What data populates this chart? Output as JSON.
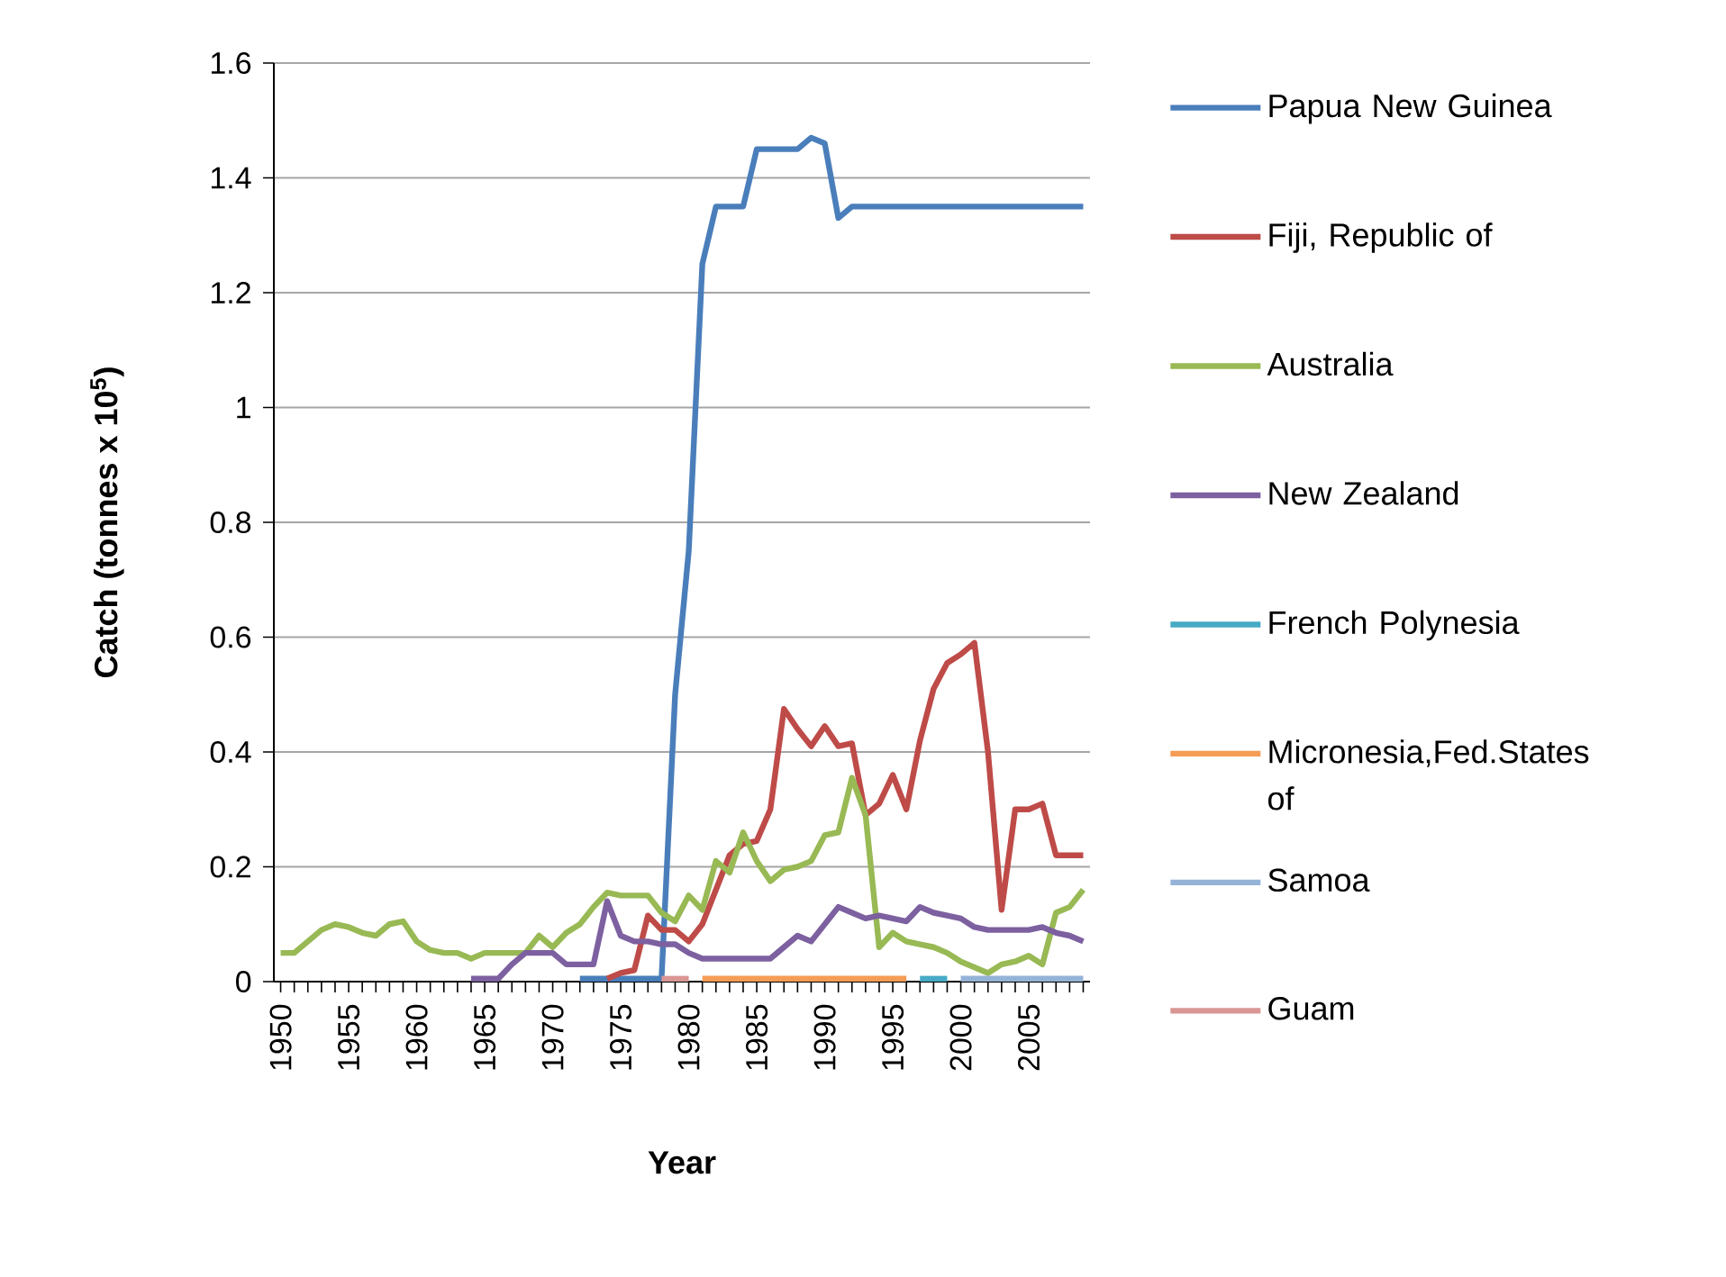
{
  "chart_data": {
    "type": "line",
    "xlabel": "Year",
    "ylabel": "Catch (tonnes x 10$^{5}$)",
    "categories": [
      "1950",
      null,
      null,
      null,
      null,
      "1955",
      null,
      null,
      null,
      null,
      "1960",
      null,
      null,
      null,
      null,
      "1965",
      null,
      null,
      null,
      null,
      "1970",
      null,
      null,
      null,
      null,
      "1975",
      null,
      null,
      null,
      null,
      "1980",
      null,
      null,
      null,
      null,
      "1985",
      null,
      null,
      null,
      null,
      "1990",
      null,
      null,
      null,
      null,
      "1995",
      null,
      null,
      null,
      null,
      "2000",
      null,
      null,
      null,
      null,
      "2005",
      null,
      null,
      null,
      null
    ],
    "ylim": [
      0,
      1.6
    ],
    "yticks": [
      0,
      0.2,
      0.4,
      0.6,
      0.8,
      1,
      1.2,
      1.4,
      1.6
    ],
    "grid": "y",
    "legend": "right",
    "marker": "none",
    "line_style": "solid",
    "series": [
      {
        "name": "Papua New Guinea",
        "color": "#4a7ebb",
        "values": [
          null,
          null,
          null,
          null,
          null,
          null,
          null,
          null,
          null,
          null,
          null,
          null,
          null,
          null,
          null,
          null,
          null,
          null,
          null,
          null,
          null,
          null,
          0.005,
          0.005,
          0.005,
          0.005,
          0.005,
          0.005,
          0.005,
          0.5,
          0.75,
          1.25,
          1.35,
          1.35,
          1.35,
          1.45,
          1.45,
          1.45,
          1.45,
          1.47,
          1.46,
          1.33,
          1.35,
          1.35,
          1.35,
          1.35,
          1.35,
          1.35,
          1.35,
          1.35,
          1.35,
          1.35,
          1.35,
          1.35,
          1.35,
          1.35,
          1.35,
          1.35,
          1.35,
          1.35
        ]
      },
      {
        "name": "Fiji, Republic of",
        "color": "#be4b48",
        "values": [
          null,
          null,
          null,
          null,
          null,
          null,
          null,
          null,
          null,
          null,
          null,
          null,
          null,
          null,
          null,
          null,
          null,
          null,
          null,
          null,
          null,
          null,
          null,
          null,
          0.005,
          0.015,
          0.02,
          0.115,
          0.09,
          0.09,
          0.07,
          0.1,
          0.16,
          0.22,
          0.24,
          0.245,
          0.3,
          0.475,
          0.44,
          0.41,
          0.445,
          0.41,
          0.415,
          0.29,
          0.31,
          0.36,
          0.3,
          0.42,
          0.51,
          0.555,
          0.57,
          0.59,
          0.4,
          0.125,
          0.3,
          0.3,
          0.31,
          0.22,
          0.22,
          0.22
        ]
      },
      {
        "name": "Australia",
        "color": "#98b954",
        "values": [
          0.05,
          0.05,
          0.07,
          0.09,
          0.1,
          0.095,
          0.085,
          0.08,
          0.1,
          0.105,
          0.07,
          0.055,
          0.05,
          0.05,
          0.04,
          0.05,
          0.05,
          0.05,
          0.05,
          0.08,
          0.06,
          0.085,
          0.1,
          0.13,
          0.155,
          0.15,
          0.15,
          0.15,
          0.12,
          0.105,
          0.15,
          0.125,
          0.21,
          0.19,
          0.26,
          0.21,
          0.175,
          0.195,
          0.2,
          0.21,
          0.255,
          0.26,
          0.355,
          0.29,
          0.06,
          0.085,
          0.07,
          0.065,
          0.06,
          0.05,
          0.035,
          0.025,
          0.015,
          0.03,
          0.035,
          0.045,
          0.03,
          0.12,
          0.13,
          0.16
        ]
      },
      {
        "name": "New Zealand",
        "color": "#7d60a0",
        "values": [
          null,
          null,
          null,
          null,
          null,
          null,
          null,
          null,
          null,
          null,
          null,
          null,
          null,
          null,
          0.005,
          0.005,
          0.005,
          0.03,
          0.05,
          0.05,
          0.05,
          0.03,
          0.03,
          0.03,
          0.14,
          0.08,
          0.07,
          0.07,
          0.065,
          0.065,
          0.05,
          0.04,
          0.04,
          0.04,
          0.04,
          0.04,
          0.04,
          0.06,
          0.08,
          0.07,
          0.1,
          0.13,
          0.12,
          0.11,
          0.115,
          0.11,
          0.105,
          0.13,
          0.12,
          0.115,
          0.11,
          0.095,
          0.09,
          0.09,
          0.09,
          0.09,
          0.095,
          0.085,
          0.08,
          0.07
        ]
      },
      {
        "name": "French Polynesia",
        "color": "#46aac5",
        "values": [
          null,
          null,
          null,
          null,
          null,
          null,
          null,
          null,
          null,
          null,
          null,
          null,
          null,
          null,
          null,
          null,
          null,
          null,
          null,
          null,
          null,
          null,
          null,
          null,
          null,
          null,
          null,
          null,
          null,
          null,
          null,
          null,
          null,
          null,
          null,
          null,
          null,
          null,
          null,
          null,
          null,
          null,
          null,
          null,
          null,
          null,
          null,
          0.005,
          0.005,
          0.005,
          null,
          null,
          null,
          null,
          null,
          null,
          null,
          null,
          null,
          null
        ]
      },
      {
        "name": "Micronesia,Fed.States of",
        "color": "#f59d56",
        "values": [
          null,
          null,
          null,
          null,
          null,
          null,
          null,
          null,
          null,
          null,
          null,
          null,
          null,
          null,
          null,
          null,
          null,
          null,
          null,
          null,
          null,
          null,
          null,
          null,
          null,
          null,
          null,
          null,
          null,
          null,
          null,
          0.005,
          0.005,
          0.005,
          0.005,
          0.005,
          0.005,
          0.005,
          0.005,
          0.005,
          0.005,
          0.005,
          0.005,
          0.005,
          0.005,
          0.005,
          0.005,
          null,
          null,
          null,
          null,
          null,
          null,
          null,
          null,
          null,
          null,
          null,
          null,
          null
        ]
      },
      {
        "name": "Samoa",
        "color": "#95b3d7",
        "values": [
          null,
          null,
          null,
          null,
          null,
          null,
          null,
          null,
          null,
          null,
          null,
          null,
          null,
          null,
          null,
          null,
          null,
          null,
          null,
          null,
          null,
          null,
          null,
          null,
          null,
          null,
          null,
          null,
          null,
          null,
          null,
          null,
          null,
          null,
          null,
          null,
          null,
          null,
          null,
          null,
          null,
          null,
          null,
          null,
          null,
          null,
          null,
          null,
          null,
          null,
          0.005,
          0.005,
          0.005,
          0.005,
          0.005,
          0.005,
          0.005,
          0.005,
          0.005,
          0.005
        ]
      },
      {
        "name": "Guam",
        "color": "#d99694",
        "values": [
          null,
          null,
          null,
          null,
          null,
          null,
          null,
          null,
          null,
          null,
          null,
          null,
          null,
          null,
          null,
          null,
          null,
          null,
          null,
          null,
          null,
          null,
          null,
          null,
          null,
          null,
          null,
          null,
          0.005,
          0.005,
          0.005,
          null,
          null,
          null,
          null,
          null,
          null,
          null,
          null,
          null,
          null,
          null,
          null,
          null,
          null,
          null,
          null,
          null,
          null,
          null,
          null,
          null,
          null,
          null,
          null,
          null,
          null,
          null,
          null,
          null
        ]
      }
    ]
  }
}
